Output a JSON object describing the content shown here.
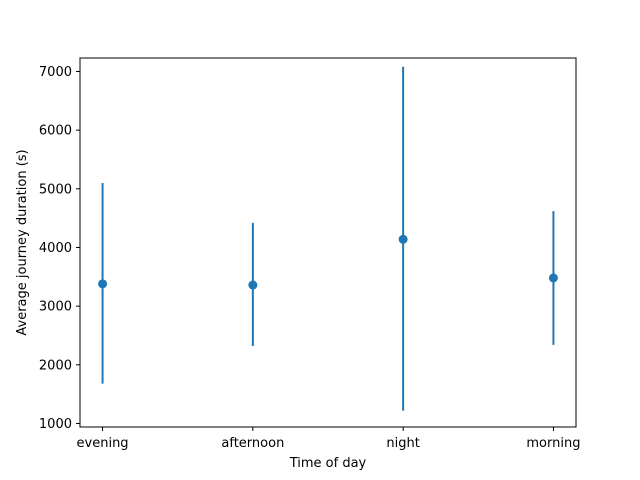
{
  "chart_data": {
    "type": "scatter",
    "title": "",
    "xlabel": "Time of day",
    "ylabel": "Average journey duration (s)",
    "categories": [
      "evening",
      "afternoon",
      "night",
      "morning"
    ],
    "series": [
      {
        "values": [
          3380,
          3360,
          4140,
          3480
        ],
        "error_low": [
          1680,
          2320,
          1220,
          2340
        ],
        "error_high": [
          5100,
          4420,
          7080,
          4620
        ]
      }
    ],
    "ylim": [
      940,
      7230
    ],
    "yticks": [
      1000,
      2000,
      3000,
      4000,
      5000,
      6000,
      7000
    ],
    "grid": false,
    "legend": "none",
    "colors": {
      "series": "#1f77b4",
      "axis": "#000000"
    }
  }
}
